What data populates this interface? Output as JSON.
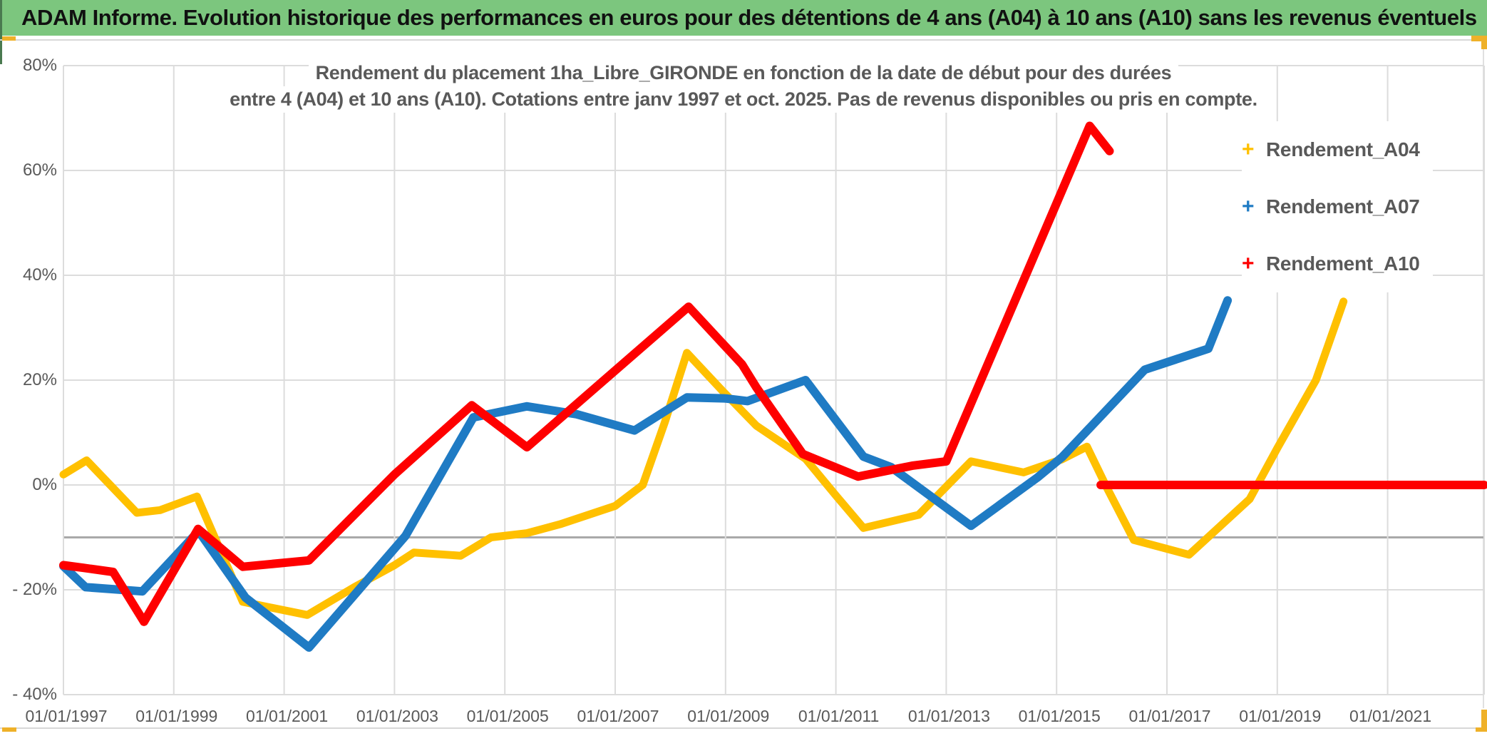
{
  "window": {
    "title": "ADAM Informe. Evolution historique des performances en euros pour des détentions de 4 ans (A04) à 10 ans (A10) sans les revenus éventuels"
  },
  "colors": {
    "titlebar_green": "#7CC67E",
    "accent_orange": "#EFB129",
    "grid_light": "#DCDCDC",
    "grid_dark": "#A9A9A9",
    "text_gray": "#595959",
    "series_a04": "#FFC000",
    "series_a07": "#1F7BC4",
    "series_a10": "#FE0000"
  },
  "chart_data": {
    "type": "line",
    "title_lines": [
      "Rendement du placement 1ha_Libre_GIRONDE en fonction de la date de début pour des durées",
      "entre 4 (A04) et 10 ans (A10). Cotations entre janv 1997 et oct. 2025. Pas de revenus disponibles ou pris en compte."
    ],
    "xlabel": "",
    "ylabel": "",
    "grid": true,
    "legend_position": "right",
    "axis": {
      "x_min": 1997,
      "x_max": 2022.75,
      "y_min": -40,
      "y_max": 80
    },
    "x_ticks": [
      {
        "year": 1997,
        "label": "01/01/1997"
      },
      {
        "year": 1999,
        "label": "01/01/1999"
      },
      {
        "year": 2001,
        "label": "01/01/2001"
      },
      {
        "year": 2003,
        "label": "01/01/2003"
      },
      {
        "year": 2005,
        "label": "01/01/2005"
      },
      {
        "year": 2007,
        "label": "01/01/2007"
      },
      {
        "year": 2009,
        "label": "01/01/2009"
      },
      {
        "year": 2011,
        "label": "01/01/2011"
      },
      {
        "year": 2013,
        "label": "01/01/2013"
      },
      {
        "year": 2015,
        "label": "01/01/2015"
      },
      {
        "year": 2017,
        "label": "01/01/2017"
      },
      {
        "year": 2019,
        "label": "01/01/2019"
      },
      {
        "year": 2021,
        "label": "01/01/2021"
      }
    ],
    "y_ticks": [
      {
        "value": 80,
        "label": "80%"
      },
      {
        "value": 60,
        "label": "60%"
      },
      {
        "value": 40,
        "label": "40%"
      },
      {
        "value": 20,
        "label": "20%"
      },
      {
        "value": 0,
        "label": "0%"
      },
      {
        "value": -20,
        "label": "- 20%"
      },
      {
        "value": -40,
        "label": "- 40%"
      }
    ],
    "highlight_line_value": -10,
    "legend": [
      {
        "label": "Rendement_A04",
        "color": "#FFC000"
      },
      {
        "label": "Rendement_A07",
        "color": "#1F7BC4"
      },
      {
        "label": "Rendement_A10",
        "color": "#FE0000"
      }
    ],
    "series": [
      {
        "name": "Rendement_A04",
        "color": "#FFC000",
        "width": 11,
        "segments": [
          [
            [
              1997.0,
              2.0
            ],
            [
              1997.42,
              4.7
            ],
            [
              1998.33,
              -5.3
            ],
            [
              1998.75,
              -4.8
            ],
            [
              1999.42,
              -2.2
            ],
            [
              2000.25,
              -22.3
            ],
            [
              2001.42,
              -24.8
            ],
            [
              2002.27,
              -19.5
            ],
            [
              2003.0,
              -15.3
            ],
            [
              2003.35,
              -12.9
            ],
            [
              2004.2,
              -13.5
            ],
            [
              2004.75,
              -10.0
            ],
            [
              2005.4,
              -9.2
            ],
            [
              2006.0,
              -7.5
            ],
            [
              2007.0,
              -4.0
            ],
            [
              2007.5,
              0.0
            ],
            [
              2007.9,
              12.0
            ],
            [
              2008.3,
              25.2
            ],
            [
              2008.94,
              18.0
            ],
            [
              2009.56,
              11.3
            ],
            [
              2010.45,
              5.0
            ],
            [
              2011.0,
              -2.0
            ],
            [
              2011.5,
              -8.2
            ],
            [
              2012.5,
              -5.7
            ],
            [
              2013.45,
              4.5
            ],
            [
              2014.4,
              2.4
            ],
            [
              2015.1,
              4.9
            ],
            [
              2015.55,
              7.3
            ],
            [
              2015.9,
              -0.3
            ],
            [
              2016.4,
              -10.5
            ],
            [
              2017.4,
              -13.3
            ],
            [
              2018.5,
              -2.7
            ],
            [
              2019.0,
              7.0
            ],
            [
              2019.7,
              20.0
            ],
            [
              2020.2,
              35.0
            ]
          ]
        ]
      },
      {
        "name": "Rendement_A07",
        "color": "#1F7BC4",
        "width": 12,
        "segments": [
          [
            [
              1997.0,
              -15.5
            ],
            [
              1997.4,
              -19.5
            ],
            [
              1998.43,
              -20.3
            ],
            [
              1999.45,
              -8.8
            ],
            [
              2000.3,
              -21.5
            ],
            [
              2001.45,
              -31.0
            ],
            [
              2003.2,
              -9.7
            ],
            [
              2004.43,
              12.9
            ],
            [
              2005.4,
              15.0
            ],
            [
              2006.3,
              13.5
            ],
            [
              2007.35,
              10.4
            ],
            [
              2008.3,
              16.7
            ],
            [
              2009.0,
              16.5
            ],
            [
              2009.4,
              16.0
            ],
            [
              2010.45,
              20.0
            ],
            [
              2011.5,
              5.4
            ],
            [
              2012.0,
              3.4
            ],
            [
              2013.45,
              -7.8
            ],
            [
              2014.65,
              1.4
            ],
            [
              2015.1,
              5.3
            ],
            [
              2016.6,
              22.0
            ],
            [
              2017.75,
              26.0
            ],
            [
              2018.1,
              35.2
            ]
          ]
        ]
      },
      {
        "name": "Rendement_A10",
        "color": "#FE0000",
        "width": 12,
        "segments": [
          [
            [
              1997.0,
              -15.3
            ],
            [
              1997.35,
              -15.8
            ],
            [
              1997.9,
              -16.6
            ],
            [
              1998.46,
              -26.1
            ],
            [
              1999.44,
              -8.4
            ],
            [
              2000.25,
              -15.6
            ],
            [
              2001.45,
              -14.4
            ],
            [
              2003.0,
              2.0
            ],
            [
              2004.4,
              15.2
            ],
            [
              2005.4,
              7.2
            ],
            [
              2008.33,
              34.0
            ],
            [
              2009.3,
              23.0
            ],
            [
              2009.56,
              18.6
            ],
            [
              2010.4,
              5.9
            ],
            [
              2011.4,
              1.6
            ],
            [
              2012.4,
              3.7
            ],
            [
              2013.0,
              4.5
            ],
            [
              2015.6,
              68.5
            ],
            [
              2015.96,
              63.7
            ]
          ],
          [
            [
              2015.8,
              0.0
            ],
            [
              2022.75,
              0.0
            ]
          ]
        ]
      }
    ]
  }
}
